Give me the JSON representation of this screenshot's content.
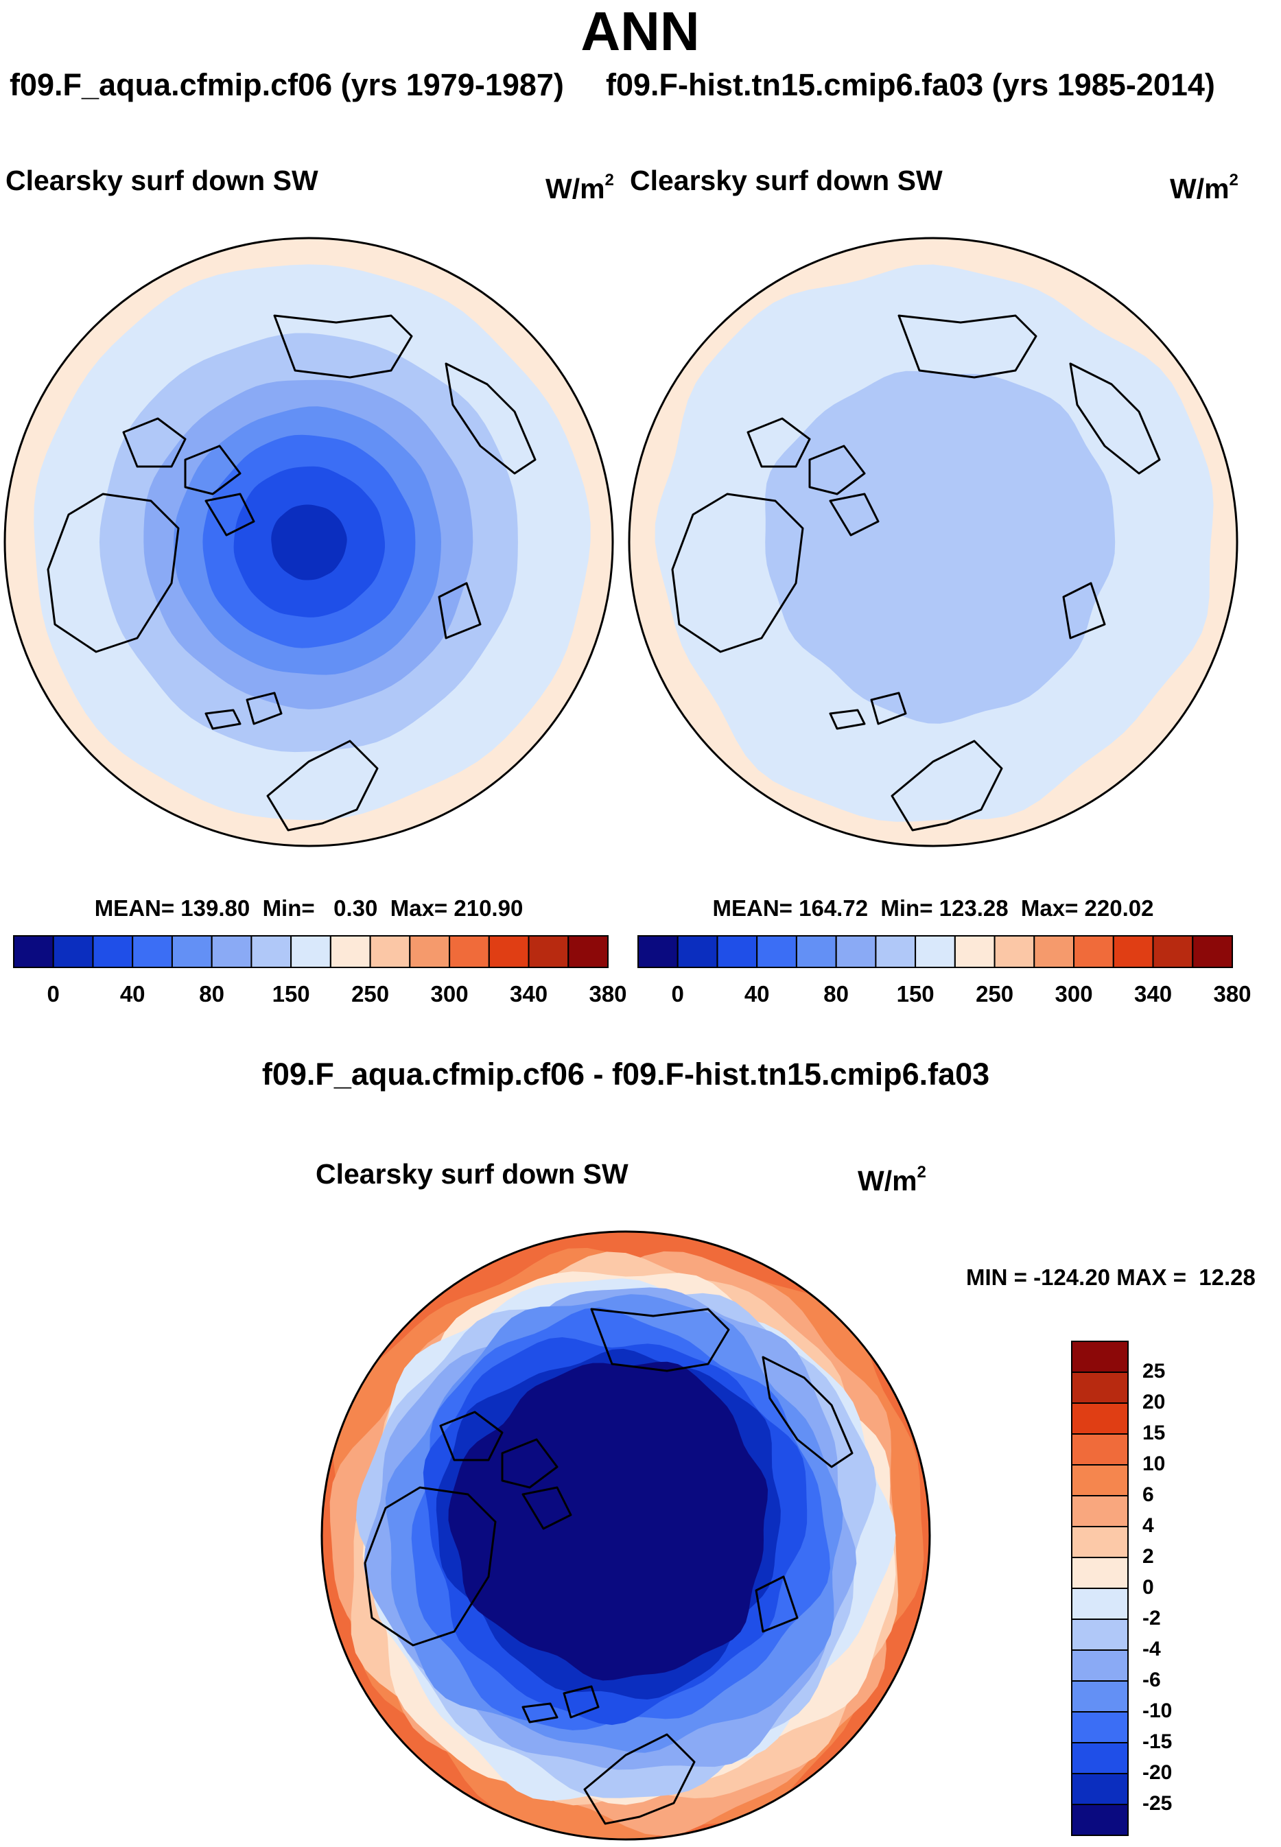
{
  "title": "ANN",
  "subtitles": {
    "left": "f09.F_aqua.cfmip.cf06 (yrs 1979-1987)",
    "right": "f09.F-hist.tn15.cmip6.fa03 (yrs 1985-2014)",
    "diff": "f09.F_aqua.cfmip.cf06 - f09.F-hist.tn15.cmip6.fa03"
  },
  "units": {
    "base": "W/m",
    "exp": "2"
  },
  "chart_data": [
    {
      "type": "heatmap",
      "projection": "north-polar-stereographic",
      "title": "Clearsky surf down SW",
      "case": "f09.F_aqua.cfmip.cf06 (yrs 1979-1987)",
      "units": "W/m2",
      "stats": {
        "mean": "139.80",
        "min": "0.30",
        "max": "210.90"
      },
      "stats_text": "MEAN= 139.80  Min=   0.30  Max= 210.90",
      "colorbar": {
        "levels": [
          0,
          20,
          40,
          60,
          80,
          100,
          150,
          200,
          250,
          280,
          300,
          320,
          340,
          360,
          380
        ],
        "tick_labels": [
          "0",
          "40",
          "80",
          "150",
          "250",
          "300",
          "340",
          "380"
        ],
        "colors": [
          "#0a0a80",
          "#0b2ebf",
          "#1f4fe8",
          "#3b6ef5",
          "#6390f5",
          "#8aaaf5",
          "#b0c8f8",
          "#d9e8fb",
          "#fde9d8",
          "#fbc7a6",
          "#f59a6c",
          "#f06b3a",
          "#e03e14",
          "#b82a10",
          "#8c0808"
        ]
      },
      "field": {
        "description": "monotonic increase from pole to edge",
        "ring_values": [
          0,
          40,
          60,
          80,
          100,
          150,
          200,
          250
        ],
        "ring_colors": [
          "#0b2ebf",
          "#1f4fe8",
          "#3b6ef5",
          "#6390f5",
          "#8aaaf5",
          "#b0c8f8",
          "#d9e8fb",
          "#fde9d8"
        ]
      }
    },
    {
      "type": "heatmap",
      "projection": "north-polar-stereographic",
      "title": "Clearsky surf down SW",
      "case": "f09.F-hist.tn15.cmip6.fa03 (yrs 1985-2014)",
      "units": "W/m2",
      "stats": {
        "mean": "164.72",
        "min": "123.28",
        "max": "220.02"
      },
      "stats_text": "MEAN= 164.72  Min= 123.28  Max= 220.02",
      "colorbar": {
        "levels": [
          0,
          20,
          40,
          60,
          80,
          100,
          150,
          200,
          250,
          280,
          300,
          320,
          340,
          360,
          380
        ],
        "tick_labels": [
          "0",
          "40",
          "80",
          "150",
          "250",
          "300",
          "340",
          "380"
        ],
        "colors": [
          "#0a0a80",
          "#0b2ebf",
          "#1f4fe8",
          "#3b6ef5",
          "#6390f5",
          "#8aaaf5",
          "#b0c8f8",
          "#d9e8fb",
          "#fde9d8",
          "#fbc7a6",
          "#f59a6c",
          "#f06b3a",
          "#e03e14",
          "#b82a10",
          "#8c0808"
        ]
      },
      "field": {
        "description": "nearly uniform, slightly lower near pole",
        "ring_values": [
          150,
          200,
          250
        ],
        "ring_colors": [
          "#b0c8f8",
          "#d9e8fb",
          "#fde9d8"
        ]
      }
    },
    {
      "type": "heatmap",
      "projection": "north-polar-stereographic",
      "title": "Clearsky surf down SW",
      "case": "f09.F_aqua.cfmip.cf06 - f09.F-hist.tn15.cmip6.fa03",
      "units": "W/m2",
      "stats": {
        "min": "-124.20",
        "max": "12.28"
      },
      "stats_text": "MIN = -124.20 MAX =  12.28",
      "colorbar": {
        "orientation": "vertical",
        "levels": [
          -30,
          -25,
          -20,
          -15,
          -10,
          -6,
          -4,
          -2,
          0,
          2,
          4,
          6,
          10,
          15,
          20,
          25,
          30
        ],
        "tick_labels": [
          "25",
          "20",
          "15",
          "10",
          "6",
          "4",
          "2",
          "0",
          "-2",
          "-4",
          "-6",
          "-10",
          "-15",
          "-20",
          "-25"
        ],
        "colors_top_to_bottom": [
          "#8c0808",
          "#b82a10",
          "#e03e14",
          "#f06b3a",
          "#f5864e",
          "#f9a77e",
          "#fcc9a8",
          "#fde9d8",
          "#d9e8fb",
          "#b0c8f8",
          "#8aaaf5",
          "#6390f5",
          "#3b6ef5",
          "#1f4fe8",
          "#0b2ebf",
          "#0a0a80"
        ]
      },
      "field": {
        "description": "strongly negative over the pole, slightly positive near the edge",
        "ring_values": [
          -30,
          -25,
          -20,
          -15,
          -10,
          -6,
          -4,
          -2,
          0,
          2,
          4,
          6,
          10
        ],
        "ring_colors": [
          "#0a0a80",
          "#0b2ebf",
          "#1f4fe8",
          "#3b6ef5",
          "#6390f5",
          "#8aaaf5",
          "#b0c8f8",
          "#d9e8fb",
          "#fde9d8",
          "#fcc9a8",
          "#f9a77e",
          "#f5864e",
          "#f06b3a"
        ]
      }
    }
  ]
}
